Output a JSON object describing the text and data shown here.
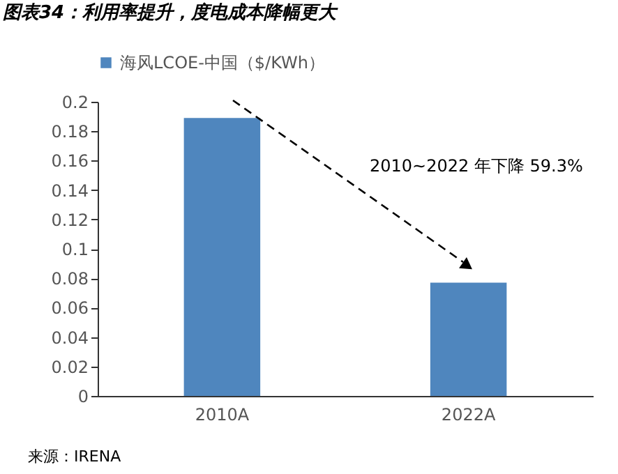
{
  "chart_data": {
    "type": "bar",
    "title": "图表34：利用率提升，度电成本降幅更大",
    "categories": [
      "2010A",
      "2022A"
    ],
    "series": [
      {
        "name": "海风LCOE-中国（$/KWh）",
        "color": "#4f86be",
        "values": [
          0.189,
          0.077
        ]
      }
    ],
    "ylim": [
      0,
      0.2
    ],
    "yticks": [
      0,
      0.02,
      0.04,
      0.06,
      0.08,
      0.1,
      0.12,
      0.14,
      0.16,
      0.18,
      0.2
    ],
    "grid": false,
    "legend": "top",
    "annotations": [
      "2010~2022 年下降 59.3%",
      "来源：IRENA"
    ]
  }
}
